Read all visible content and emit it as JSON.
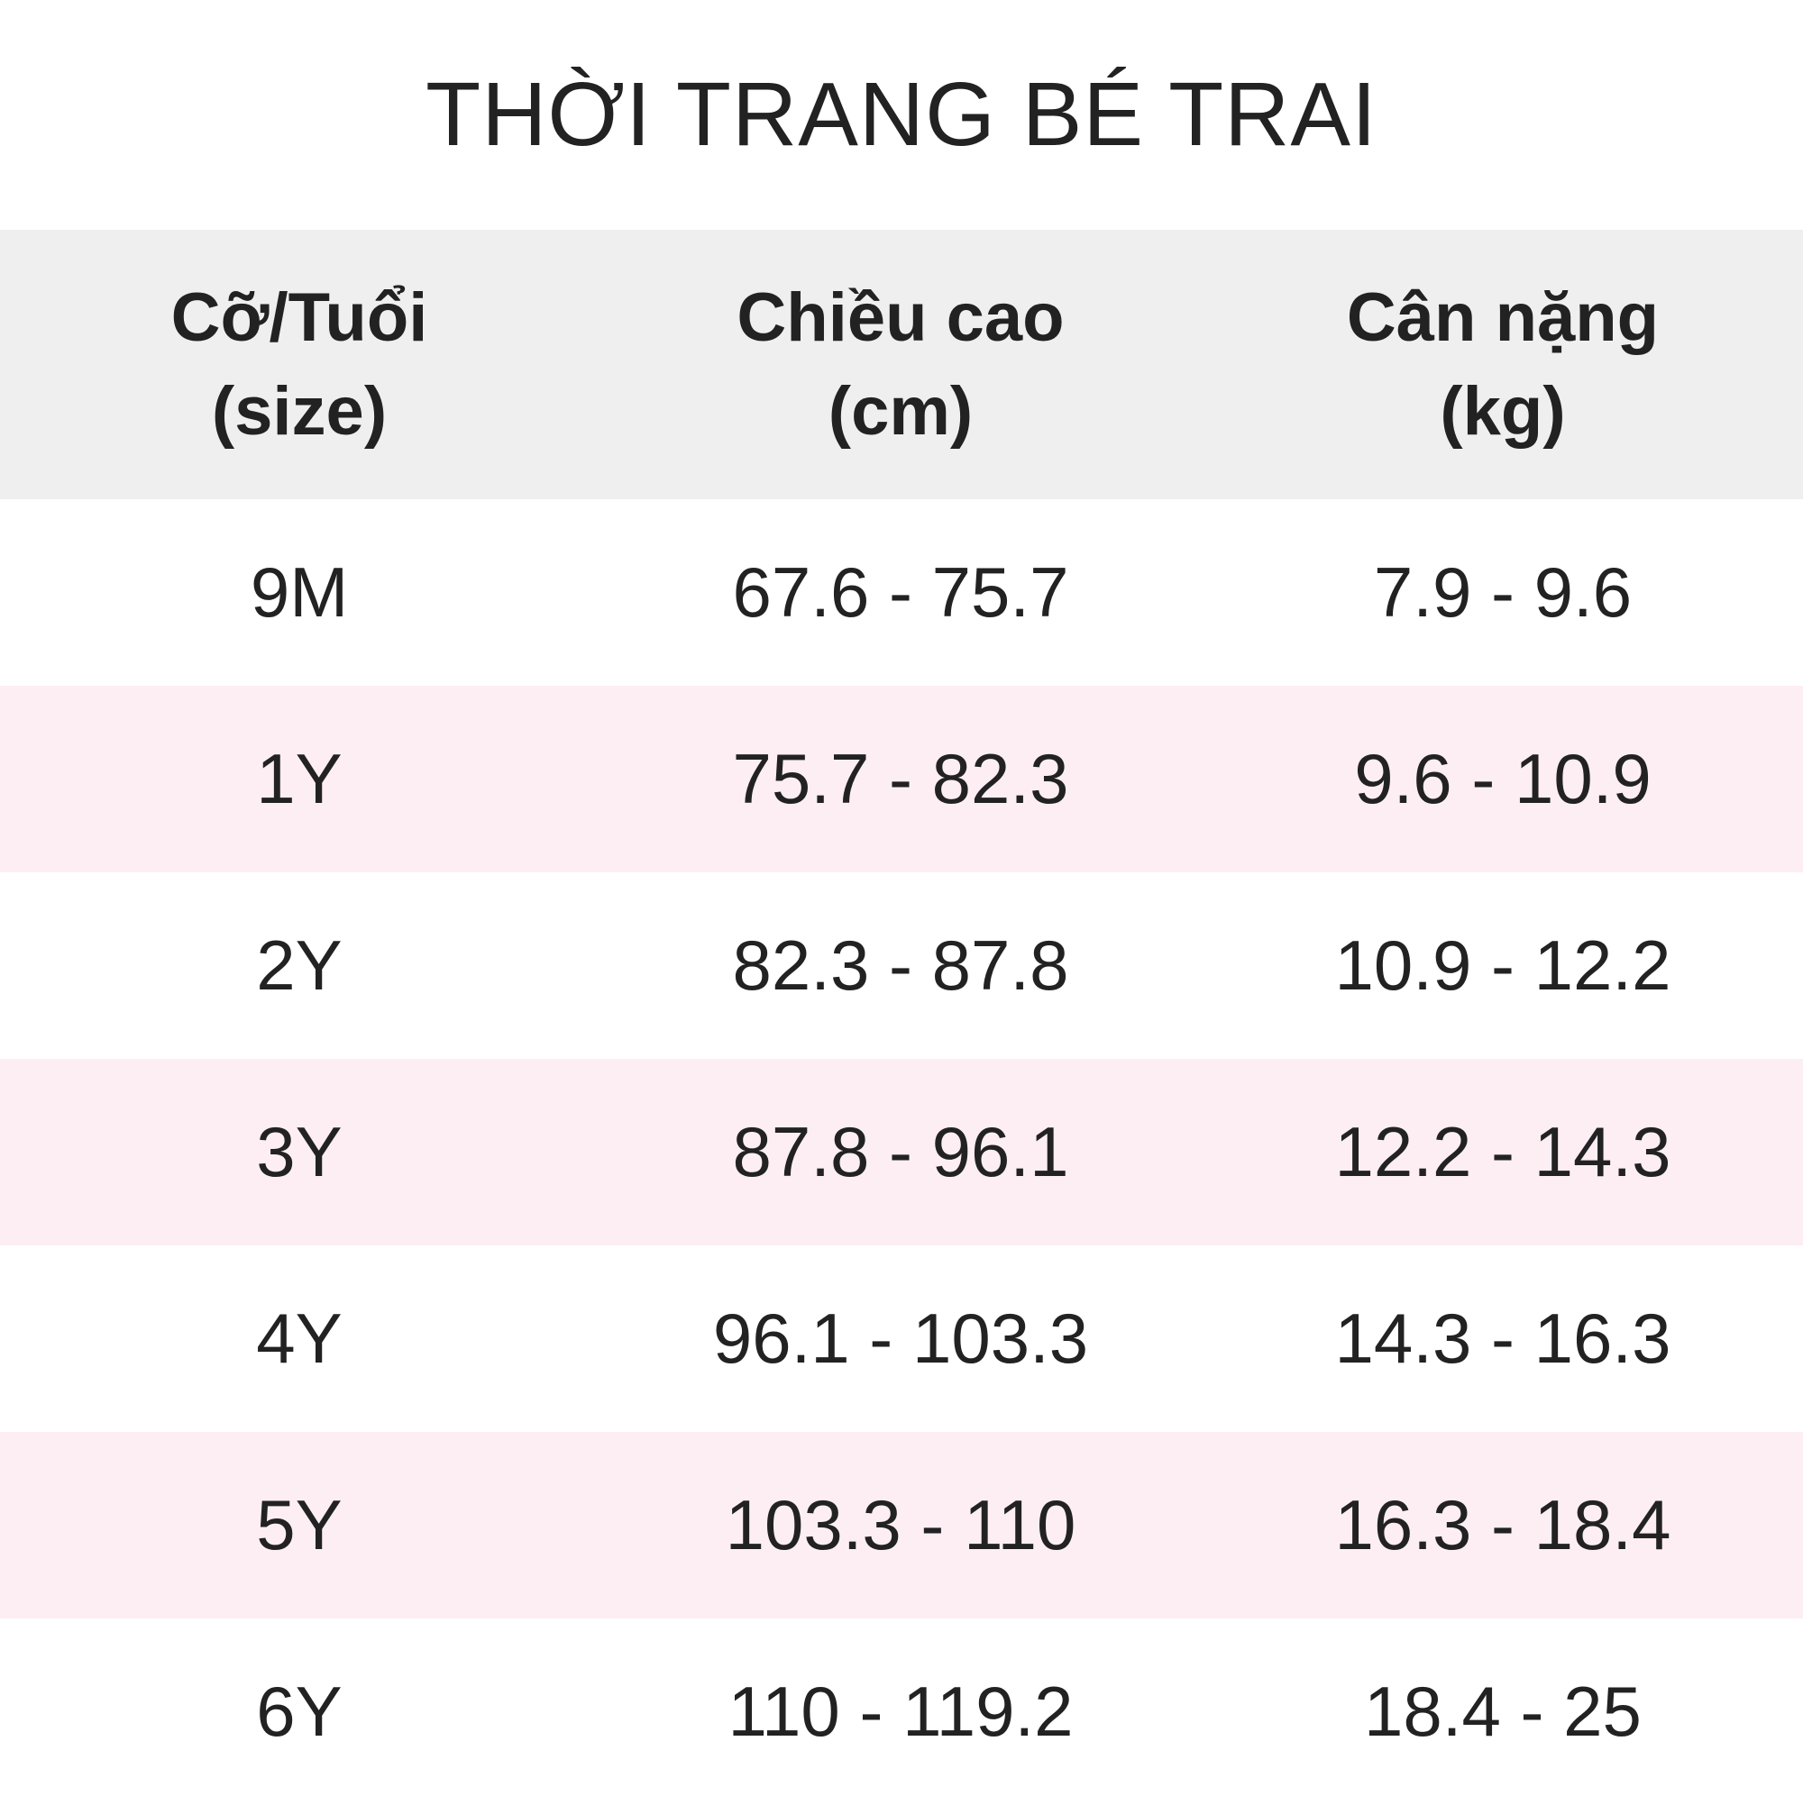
{
  "title": "THỜI TRANG BÉ TRAI",
  "colors": {
    "header_bg": "#efefef",
    "alt_row_bg": "#fdeef4",
    "text": "#222222"
  },
  "table": {
    "headers": [
      {
        "line1": "Cỡ/Tuổi",
        "line2": "(size)"
      },
      {
        "line1": "Chiều cao",
        "line2": "(cm)"
      },
      {
        "line1": "Cân nặng",
        "line2": "(kg)"
      }
    ],
    "rows": [
      [
        "9M",
        "67.6 - 75.7",
        "7.9 - 9.6"
      ],
      [
        "1Y",
        "75.7 - 82.3",
        "9.6 - 10.9"
      ],
      [
        "2Y",
        "82.3 - 87.8",
        "10.9 - 12.2"
      ],
      [
        "3Y",
        "87.8 - 96.1",
        "12.2 - 14.3"
      ],
      [
        "4Y",
        "96.1 - 103.3",
        "14.3 - 16.3"
      ],
      [
        "5Y",
        "103.3 - 110",
        "16.3 - 18.4"
      ],
      [
        "6Y",
        "110 - 119.2",
        "18.4 - 25"
      ]
    ]
  }
}
